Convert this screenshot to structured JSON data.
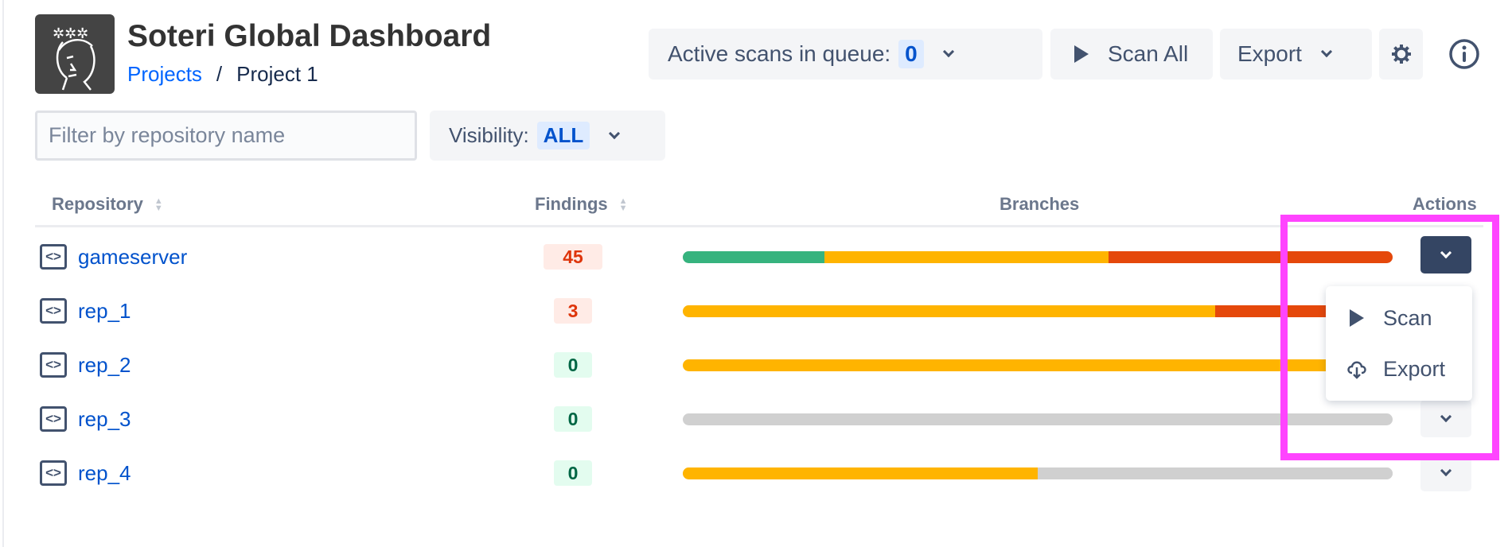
{
  "header": {
    "title": "Soteri Global Dashboard",
    "breadcrumb": [
      "Projects",
      "Project 1"
    ],
    "logo": "soteri-face-logo"
  },
  "toolbar": {
    "queue_label": "Active scans in queue:",
    "queue_count": "0",
    "scan_all": "Scan All",
    "export": "Export",
    "settings_icon": "gear-icon",
    "info_icon": "info-icon"
  },
  "filters": {
    "search_placeholder": "Filter by repository name",
    "search_value": "",
    "visibility_label": "Visibility:",
    "visibility_value": "ALL"
  },
  "table": {
    "columns": [
      "Repository",
      "Findings",
      "Branches",
      "Actions"
    ],
    "branch_colors": {
      "green": "#36b37e",
      "yellow": "#ffb400",
      "red": "#e5480b",
      "grey": "#d0d0d0"
    },
    "rows": [
      {
        "name": "gameserver",
        "findings": "45",
        "severity": "bad",
        "branches": [
          {
            "color": "green",
            "fraction": 0.2
          },
          {
            "color": "yellow",
            "fraction": 0.4
          },
          {
            "color": "red",
            "fraction": 0.4
          }
        ]
      },
      {
        "name": "rep_1",
        "findings": "3",
        "severity": "bad",
        "branches": [
          {
            "color": "yellow",
            "fraction": 0.75
          },
          {
            "color": "red",
            "fraction": 0.25
          }
        ]
      },
      {
        "name": "rep_2",
        "findings": "0",
        "severity": "ok",
        "branches": [
          {
            "color": "yellow",
            "fraction": 1.0
          }
        ]
      },
      {
        "name": "rep_3",
        "findings": "0",
        "severity": "ok",
        "branches": [
          {
            "color": "grey",
            "fraction": 1.0
          }
        ]
      },
      {
        "name": "rep_4",
        "findings": "0",
        "severity": "ok",
        "branches": [
          {
            "color": "yellow",
            "fraction": 0.5
          },
          {
            "color": "grey",
            "fraction": 0.5
          }
        ]
      }
    ]
  },
  "actions_menu": {
    "items": [
      {
        "label": "Scan",
        "icon": "play-icon"
      },
      {
        "label": "Export",
        "icon": "cloud-download-icon"
      }
    ]
  }
}
